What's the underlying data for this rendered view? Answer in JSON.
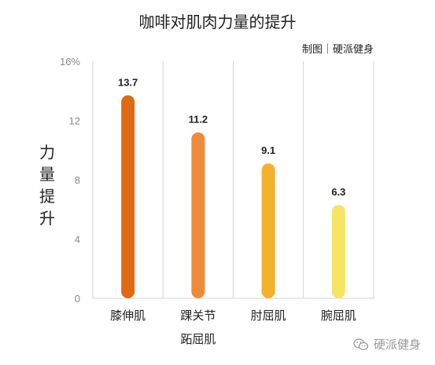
{
  "chart_data": {
    "type": "bar",
    "title": "咖啡对肌肉力量的提升",
    "subtitle": "制图｜硬派健身",
    "ylabel_chars": [
      "力",
      "量",
      "提",
      "升"
    ],
    "categories": [
      {
        "lines": [
          "膝伸肌"
        ]
      },
      {
        "lines": [
          "踝关节",
          "跖屈肌"
        ]
      },
      {
        "lines": [
          "肘屈肌"
        ]
      },
      {
        "lines": [
          "腕屈肌"
        ]
      }
    ],
    "values": [
      13.7,
      11.2,
      9.1,
      6.3
    ],
    "value_labels": [
      "13.7",
      "11.2",
      "9.1",
      "6.3"
    ],
    "bar_colors": [
      "#e06914",
      "#ef8a3c",
      "#f3b12c",
      "#f6e463"
    ],
    "yticks": [
      "0",
      "4",
      "8",
      "12",
      "16%"
    ],
    "ytick_values": [
      0,
      4,
      8,
      12,
      16
    ],
    "ylim": [
      0,
      16
    ],
    "grid": "vertical separators",
    "colors": {
      "tick_text": "#8a8a8a",
      "grid": "#d4d4d4",
      "label": "#222222"
    }
  },
  "watermark": {
    "icon": "wechat-icon",
    "text": "硬派健身"
  }
}
